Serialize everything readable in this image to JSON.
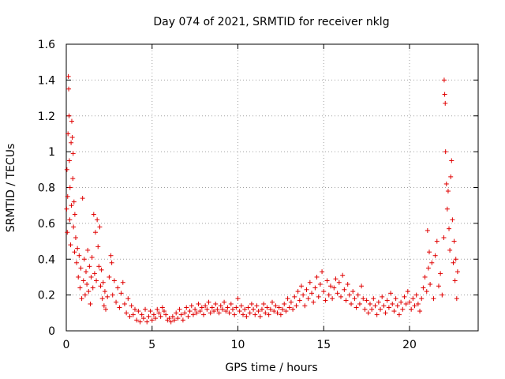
{
  "chart_data": {
    "type": "scatter",
    "title": "Day 074 of 2021, SRMTID for receiver nklg",
    "xlabel": "GPS time / hours",
    "ylabel": "SRMTID / TECUs",
    "xlim": [
      0,
      24
    ],
    "ylim": [
      0,
      1.6
    ],
    "xticks": [
      0,
      5,
      10,
      15,
      20
    ],
    "yticks": [
      0,
      0.2,
      0.4,
      0.6,
      0.8,
      1.0,
      1.2,
      1.4,
      1.6
    ],
    "xtick_labels": [
      "0",
      "5",
      "10",
      "15",
      "20"
    ],
    "ytick_labels": [
      "0",
      "0.2",
      "0.4",
      "0.6",
      "0.8",
      "1",
      "1.2",
      "1.4",
      "1.6"
    ],
    "grid": true,
    "marker": "+",
    "color": "#e00000",
    "series": [
      {
        "name": "SRMTID",
        "points": [
          [
            0.02,
            0.68
          ],
          [
            0.04,
            0.9
          ],
          [
            0.06,
            0.55
          ],
          [
            0.08,
            0.75
          ],
          [
            0.1,
            1.1
          ],
          [
            0.12,
            1.42
          ],
          [
            0.14,
            1.35
          ],
          [
            0.16,
            1.2
          ],
          [
            0.18,
            0.95
          ],
          [
            0.2,
            0.62
          ],
          [
            0.22,
            0.8
          ],
          [
            0.25,
            0.48
          ],
          [
            0.28,
            1.05
          ],
          [
            0.3,
            0.7
          ],
          [
            0.32,
            1.17
          ],
          [
            0.35,
            1.08
          ],
          [
            0.38,
            0.85
          ],
          [
            0.4,
            0.99
          ],
          [
            0.42,
            0.58
          ],
          [
            0.45,
            0.72
          ],
          [
            0.48,
            0.44
          ],
          [
            0.5,
            0.65
          ],
          [
            0.55,
            0.52
          ],
          [
            0.6,
            0.38
          ],
          [
            0.65,
            0.46
          ],
          [
            0.7,
            0.3
          ],
          [
            0.75,
            0.42
          ],
          [
            0.8,
            0.24
          ],
          [
            0.85,
            0.35
          ],
          [
            0.9,
            0.18
          ],
          [
            0.95,
            0.74
          ],
          [
            1.0,
            0.28
          ],
          [
            1.05,
            0.4
          ],
          [
            1.1,
            0.2
          ],
          [
            1.15,
            0.33
          ],
          [
            1.2,
            0.26
          ],
          [
            1.25,
            0.45
          ],
          [
            1.3,
            0.22
          ],
          [
            1.35,
            0.36
          ],
          [
            1.4,
            0.15
          ],
          [
            1.45,
            0.3
          ],
          [
            1.5,
            0.41
          ],
          [
            1.55,
            0.24
          ],
          [
            1.6,
            0.65
          ],
          [
            1.65,
            0.32
          ],
          [
            1.7,
            0.55
          ],
          [
            1.75,
            0.28
          ],
          [
            1.8,
            0.62
          ],
          [
            1.85,
            0.47
          ],
          [
            1.9,
            0.36
          ],
          [
            1.95,
            0.58
          ],
          [
            2.0,
            0.25
          ],
          [
            2.05,
            0.34
          ],
          [
            2.1,
            0.18
          ],
          [
            2.15,
            0.27
          ],
          [
            2.2,
            0.14
          ],
          [
            2.25,
            0.22
          ],
          [
            2.3,
            0.12
          ],
          [
            2.4,
            0.19
          ],
          [
            2.5,
            0.3
          ],
          [
            2.6,
            0.42
          ],
          [
            2.65,
            0.38
          ],
          [
            2.7,
            0.2
          ],
          [
            2.8,
            0.28
          ],
          [
            2.9,
            0.16
          ],
          [
            3.0,
            0.24
          ],
          [
            3.1,
            0.13
          ],
          [
            3.2,
            0.21
          ],
          [
            3.3,
            0.27
          ],
          [
            3.4,
            0.15
          ],
          [
            3.5,
            0.1
          ],
          [
            3.6,
            0.18
          ],
          [
            3.7,
            0.08
          ],
          [
            3.8,
            0.14
          ],
          [
            3.9,
            0.09
          ],
          [
            4.0,
            0.12
          ],
          [
            4.1,
            0.06
          ],
          [
            4.2,
            0.11
          ],
          [
            4.3,
            0.05
          ],
          [
            4.4,
            0.09
          ],
          [
            4.5,
            0.07
          ],
          [
            4.6,
            0.12
          ],
          [
            4.7,
            0.05
          ],
          [
            4.8,
            0.08
          ],
          [
            4.9,
            0.11
          ],
          [
            5.0,
            0.06
          ],
          [
            5.1,
            0.09
          ],
          [
            5.2,
            0.07
          ],
          [
            5.3,
            0.12
          ],
          [
            5.4,
            0.1
          ],
          [
            5.5,
            0.08
          ],
          [
            5.6,
            0.13
          ],
          [
            5.7,
            0.11
          ],
          [
            5.8,
            0.09
          ],
          [
            5.9,
            0.06
          ],
          [
            6.0,
            0.07
          ],
          [
            6.1,
            0.05
          ],
          [
            6.2,
            0.08
          ],
          [
            6.3,
            0.06
          ],
          [
            6.4,
            0.1
          ],
          [
            6.5,
            0.07
          ],
          [
            6.6,
            0.12
          ],
          [
            6.7,
            0.09
          ],
          [
            6.8,
            0.06
          ],
          [
            6.9,
            0.1
          ],
          [
            7.0,
            0.13
          ],
          [
            7.1,
            0.08
          ],
          [
            7.2,
            0.11
          ],
          [
            7.3,
            0.14
          ],
          [
            7.4,
            0.09
          ],
          [
            7.5,
            0.12
          ],
          [
            7.6,
            0.1
          ],
          [
            7.7,
            0.15
          ],
          [
            7.8,
            0.11
          ],
          [
            7.9,
            0.13
          ],
          [
            8.0,
            0.09
          ],
          [
            8.1,
            0.14
          ],
          [
            8.2,
            0.12
          ],
          [
            8.3,
            0.16
          ],
          [
            8.4,
            0.1
          ],
          [
            8.5,
            0.13
          ],
          [
            8.6,
            0.11
          ],
          [
            8.7,
            0.15
          ],
          [
            8.8,
            0.12
          ],
          [
            8.9,
            0.1
          ],
          [
            9.0,
            0.14
          ],
          [
            9.1,
            0.12
          ],
          [
            9.2,
            0.16
          ],
          [
            9.3,
            0.11
          ],
          [
            9.4,
            0.13
          ],
          [
            9.5,
            0.1
          ],
          [
            9.6,
            0.15
          ],
          [
            9.7,
            0.12
          ],
          [
            9.8,
            0.09
          ],
          [
            9.9,
            0.13
          ],
          [
            10.0,
            0.18
          ],
          [
            10.1,
            0.11
          ],
          [
            10.2,
            0.14
          ],
          [
            10.3,
            0.09
          ],
          [
            10.4,
            0.12
          ],
          [
            10.5,
            0.08
          ],
          [
            10.6,
            0.13
          ],
          [
            10.7,
            0.1
          ],
          [
            10.8,
            0.15
          ],
          [
            10.9,
            0.12
          ],
          [
            11.0,
            0.09
          ],
          [
            11.1,
            0.14
          ],
          [
            11.2,
            0.11
          ],
          [
            11.3,
            0.08
          ],
          [
            11.4,
            0.12
          ],
          [
            11.5,
            0.15
          ],
          [
            11.6,
            0.1
          ],
          [
            11.7,
            0.13
          ],
          [
            11.8,
            0.09
          ],
          [
            11.9,
            0.12
          ],
          [
            12.0,
            0.16
          ],
          [
            12.1,
            0.11
          ],
          [
            12.2,
            0.14
          ],
          [
            12.3,
            0.1
          ],
          [
            12.4,
            0.13
          ],
          [
            12.5,
            0.09
          ],
          [
            12.6,
            0.12
          ],
          [
            12.7,
            0.15
          ],
          [
            12.8,
            0.11
          ],
          [
            12.9,
            0.18
          ],
          [
            13.0,
            0.13
          ],
          [
            13.1,
            0.16
          ],
          [
            13.2,
            0.12
          ],
          [
            13.3,
            0.19
          ],
          [
            13.4,
            0.14
          ],
          [
            13.5,
            0.22
          ],
          [
            13.6,
            0.17
          ],
          [
            13.7,
            0.25
          ],
          [
            13.8,
            0.2
          ],
          [
            13.9,
            0.14
          ],
          [
            14.0,
            0.23
          ],
          [
            14.1,
            0.18
          ],
          [
            14.2,
            0.27
          ],
          [
            14.3,
            0.21
          ],
          [
            14.4,
            0.16
          ],
          [
            14.5,
            0.24
          ],
          [
            14.6,
            0.3
          ],
          [
            14.7,
            0.19
          ],
          [
            14.8,
            0.26
          ],
          [
            14.9,
            0.33
          ],
          [
            15.0,
            0.22
          ],
          [
            15.1,
            0.17
          ],
          [
            15.2,
            0.28
          ],
          [
            15.3,
            0.2
          ],
          [
            15.4,
            0.25
          ],
          [
            15.5,
            0.18
          ],
          [
            15.6,
            0.24
          ],
          [
            15.7,
            0.29
          ],
          [
            15.8,
            0.21
          ],
          [
            15.9,
            0.27
          ],
          [
            16.0,
            0.19
          ],
          [
            16.1,
            0.31
          ],
          [
            16.2,
            0.23
          ],
          [
            16.3,
            0.17
          ],
          [
            16.4,
            0.26
          ],
          [
            16.5,
            0.2
          ],
          [
            16.6,
            0.15
          ],
          [
            16.7,
            0.22
          ],
          [
            16.8,
            0.18
          ],
          [
            16.9,
            0.13
          ],
          [
            17.0,
            0.2
          ],
          [
            17.1,
            0.15
          ],
          [
            17.2,
            0.25
          ],
          [
            17.3,
            0.18
          ],
          [
            17.4,
            0.12
          ],
          [
            17.5,
            0.17
          ],
          [
            17.6,
            0.1
          ],
          [
            17.7,
            0.15
          ],
          [
            17.8,
            0.12
          ],
          [
            17.9,
            0.18
          ],
          [
            18.0,
            0.14
          ],
          [
            18.1,
            0.09
          ],
          [
            18.2,
            0.16
          ],
          [
            18.3,
            0.12
          ],
          [
            18.4,
            0.19
          ],
          [
            18.5,
            0.14
          ],
          [
            18.6,
            0.1
          ],
          [
            18.7,
            0.17
          ],
          [
            18.8,
            0.13
          ],
          [
            18.9,
            0.21
          ],
          [
            19.0,
            0.15
          ],
          [
            19.1,
            0.11
          ],
          [
            19.2,
            0.18
          ],
          [
            19.3,
            0.14
          ],
          [
            19.4,
            0.09
          ],
          [
            19.5,
            0.16
          ],
          [
            19.6,
            0.12
          ],
          [
            19.7,
            0.19
          ],
          [
            19.8,
            0.15
          ],
          [
            19.9,
            0.22
          ],
          [
            20.0,
            0.16
          ],
          [
            20.1,
            0.12
          ],
          [
            20.2,
            0.18
          ],
          [
            20.3,
            0.14
          ],
          [
            20.4,
            0.2
          ],
          [
            20.5,
            0.15
          ],
          [
            20.6,
            0.11
          ],
          [
            20.7,
            0.18
          ],
          [
            20.8,
            0.24
          ],
          [
            20.9,
            0.3
          ],
          [
            21.0,
            0.22
          ],
          [
            21.05,
            0.56
          ],
          [
            21.1,
            0.35
          ],
          [
            21.15,
            0.44
          ],
          [
            21.2,
            0.26
          ],
          [
            21.3,
            0.38
          ],
          [
            21.4,
            0.18
          ],
          [
            21.5,
            0.42
          ],
          [
            21.6,
            0.5
          ],
          [
            21.7,
            0.25
          ],
          [
            21.8,
            0.32
          ],
          [
            21.9,
            0.2
          ],
          [
            22.0,
            0.52
          ],
          [
            22.02,
            1.4
          ],
          [
            22.05,
            1.32
          ],
          [
            22.08,
            1.27
          ],
          [
            22.1,
            1.0
          ],
          [
            22.15,
            0.82
          ],
          [
            22.2,
            0.68
          ],
          [
            22.25,
            0.78
          ],
          [
            22.3,
            0.57
          ],
          [
            22.35,
            0.45
          ],
          [
            22.4,
            0.86
          ],
          [
            22.45,
            0.95
          ],
          [
            22.5,
            0.62
          ],
          [
            22.55,
            0.38
          ],
          [
            22.6,
            0.5
          ],
          [
            22.65,
            0.28
          ],
          [
            22.7,
            0.4
          ],
          [
            22.75,
            0.18
          ],
          [
            22.8,
            0.33
          ]
        ]
      }
    ]
  }
}
